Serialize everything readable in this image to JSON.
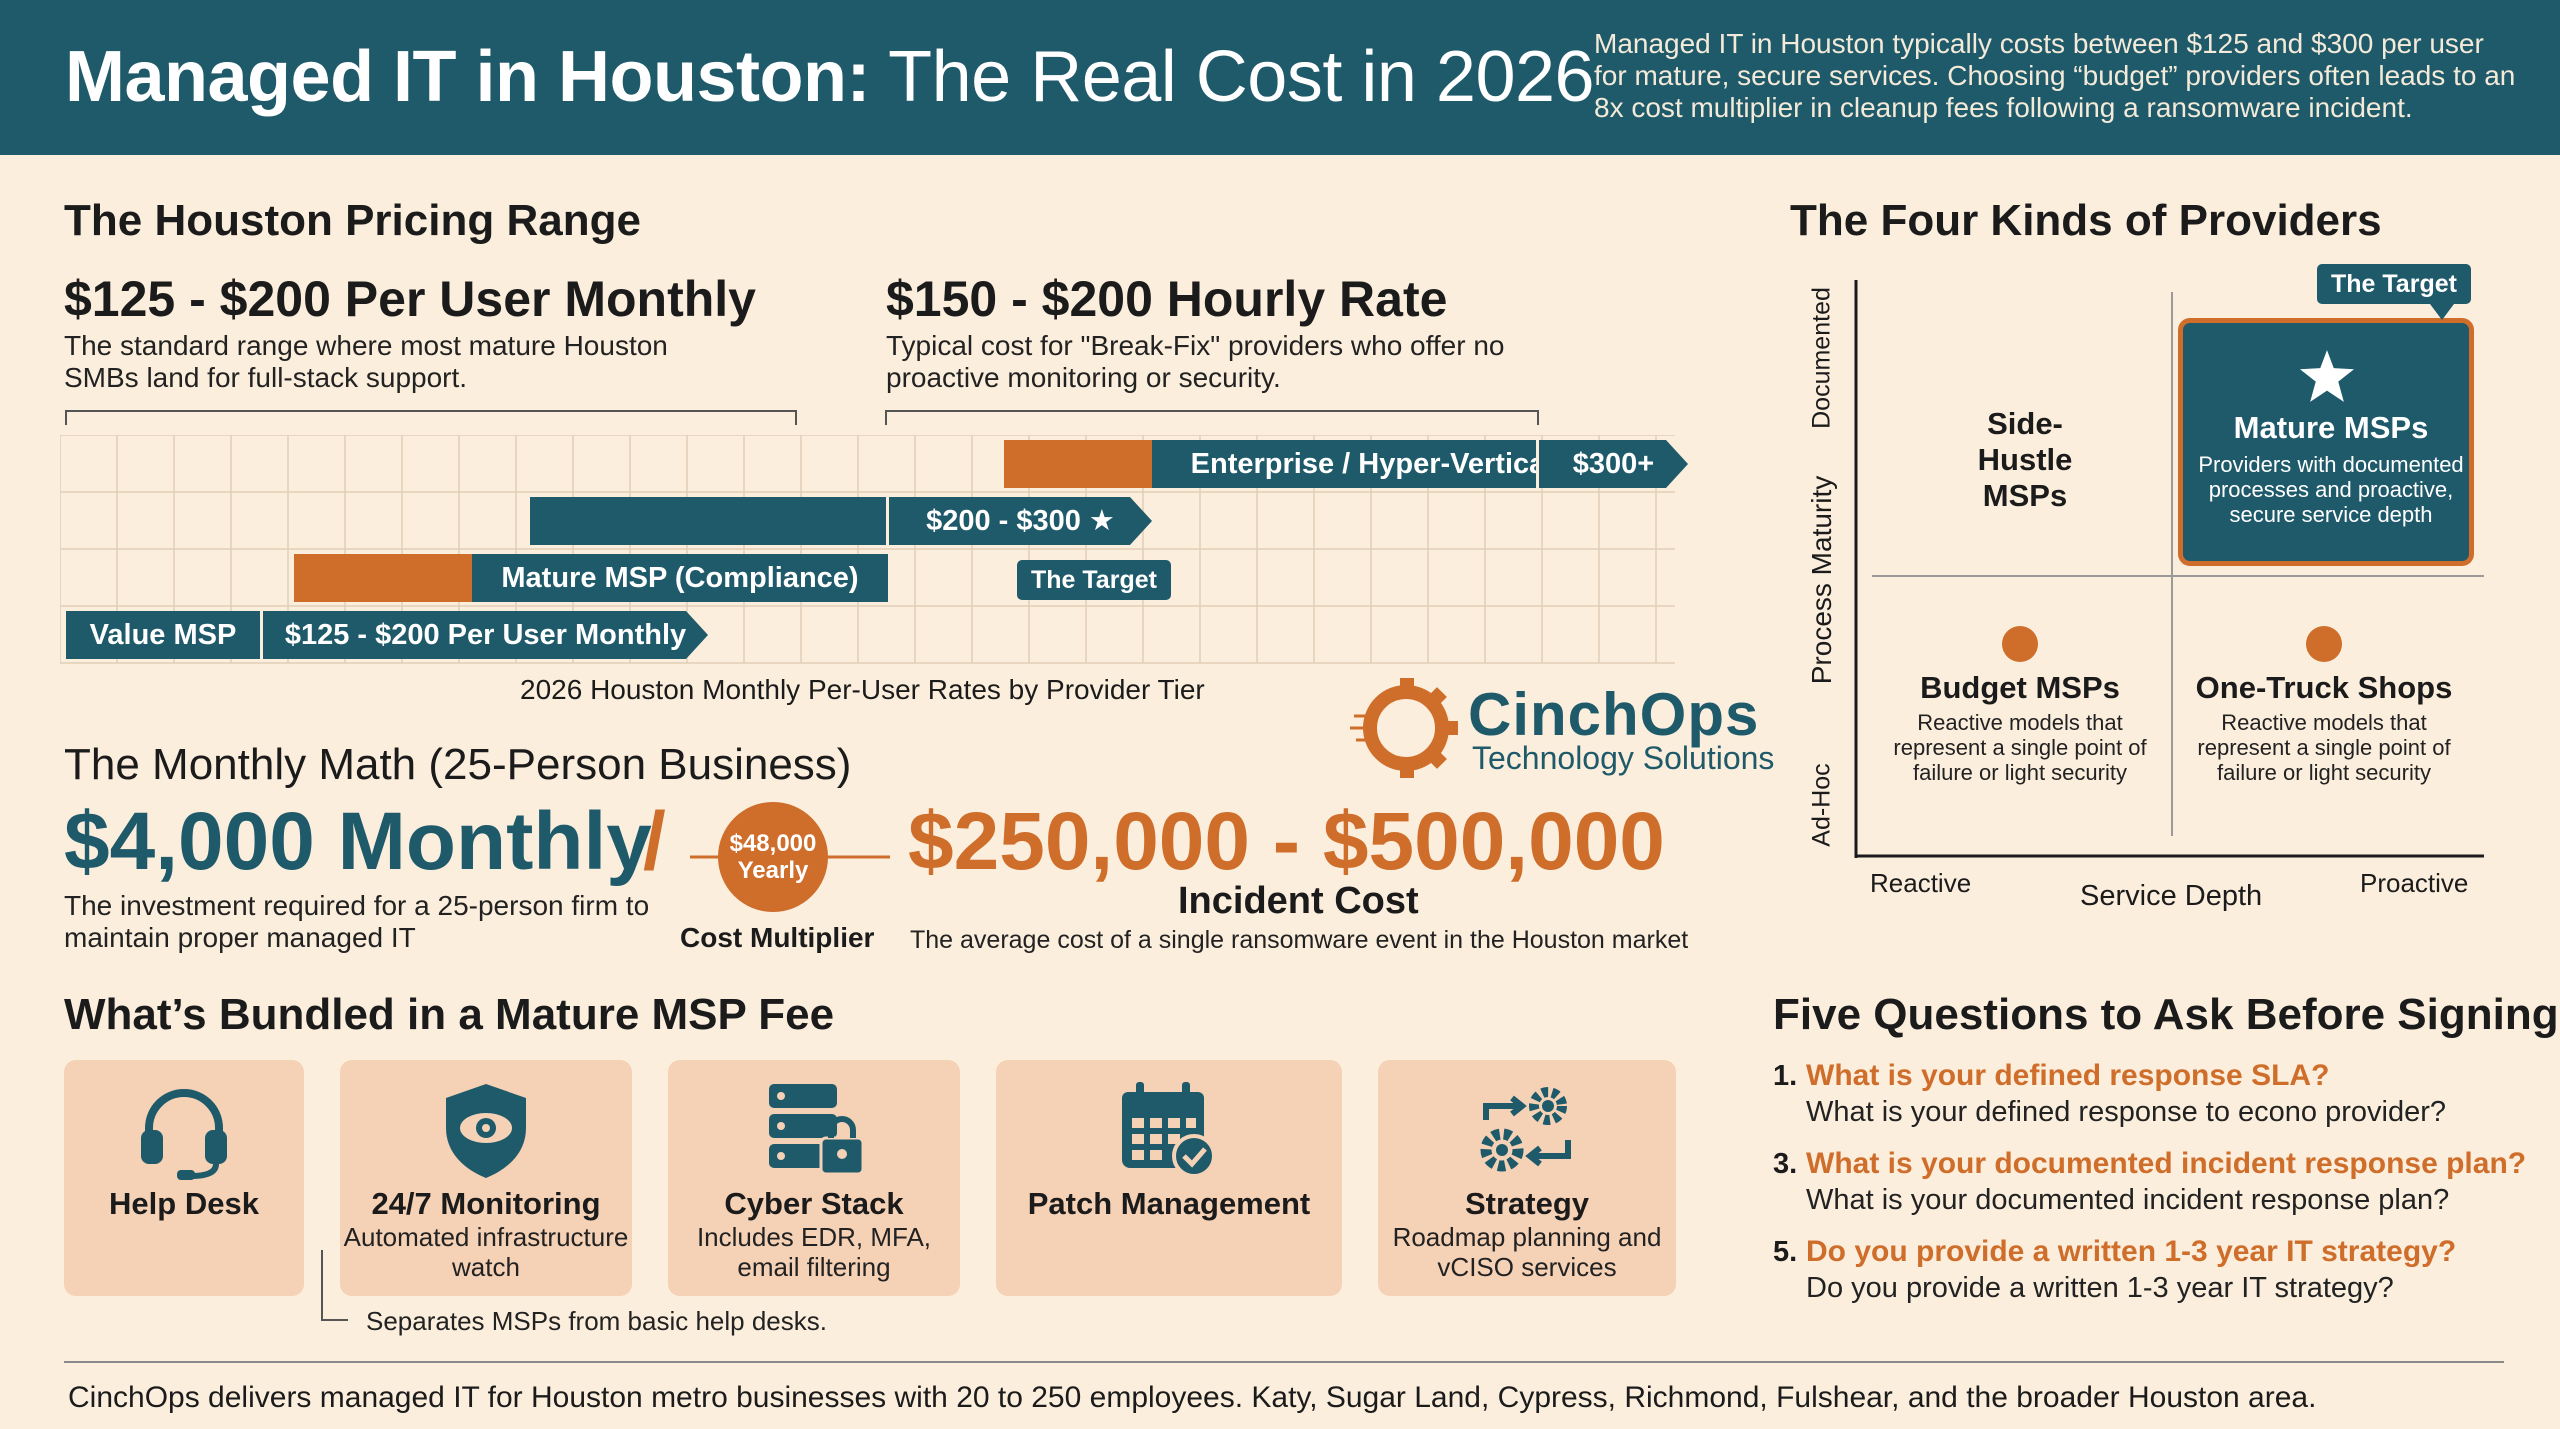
{
  "header": {
    "title_bold": "Managed IT in Houston:",
    "title_light": "The Real Cost in 2026",
    "summary": "Managed IT in Houston typically costs between $125 and $300 per user for mature, secure services. Choosing “budget” providers often leads to an 8x cost multiplier in cleanup fees following a ransomware incident."
  },
  "pricing": {
    "section_title": "The Houston Pricing Range",
    "left": {
      "price": "$125 - $200 Per User Monthly",
      "desc": "The standard range where most mature Houston SMBs land for full-stack support."
    },
    "right": {
      "price": "$150 - $200 Hourly Rate",
      "desc": "Typical cost for \"Break-Fix\" providers who offer no proactive monitoring or security."
    },
    "chart": {
      "caption": "2026 Houston Monthly Per-User Rates by Provider Tier",
      "tiers": [
        {
          "name": "Value MSP",
          "range": "$125 - $200 Per User Monthly"
        },
        {
          "name": "Mature MSP (Compliance)",
          "range": "$200 - $300 ★"
        },
        {
          "name": "Enterprise / Hyper-Vertical",
          "range": "$300+"
        }
      ],
      "target_tag": "The Target"
    }
  },
  "brand": {
    "name": "CinchOps",
    "tagline": "Technology Solutions"
  },
  "monthly_math": {
    "section_title": "The Monthly Math (25-Person Business)",
    "monthly_value": "$4,000 Monthly",
    "slash": "/",
    "monthly_desc": "The investment required for a 25-person firm to maintain proper managed IT",
    "yearly_line1": "$48,000",
    "yearly_line2": "Yearly",
    "multiplier_label": "Cost Multiplier",
    "incident_value": "$250,000 - $500,000",
    "incident_label": "Incident Cost",
    "incident_desc": "The average cost of a single ransomware event in the Houston market"
  },
  "bundle": {
    "section_title": "What’s Bundled in a Mature MSP Fee",
    "cards": [
      {
        "title": "Help Desk",
        "sub": "",
        "icon": "headset-icon"
      },
      {
        "title": "24/7 Monitoring",
        "sub": "Automated infrastructure watch",
        "icon": "shield-eye-icon"
      },
      {
        "title": "Cyber Stack",
        "sub": "Includes EDR, MFA, email filtering",
        "icon": "server-lock-icon"
      },
      {
        "title": "Patch Management",
        "sub": "",
        "icon": "calendar-check-icon"
      },
      {
        "title": "Strategy",
        "sub": "Roadmap planning and vCISO services",
        "icon": "gears-icon"
      }
    ],
    "note": "Separates MSPs from basic help desks."
  },
  "providers": {
    "section_title": "The Four Kinds of Providers",
    "y_axis": {
      "label": "Process Maturity",
      "top": "Documented",
      "bottom": "Ad-Hoc"
    },
    "x_axis": {
      "label": "Service Depth",
      "left": "Reactive",
      "right": "Proactive"
    },
    "target_tag": "The Target",
    "quadrants": [
      {
        "title": "Side-Hustle MSPs",
        "desc": ""
      },
      {
        "title": "Mature MSPs",
        "desc": "Providers with documented processes and proactive, secure service depth"
      },
      {
        "title": "Budget MSPs",
        "desc": "Reactive models that represent a single point of failure or light security"
      },
      {
        "title": "One-Truck Shops",
        "desc": "Reactive models that represent a single point of failure or light security"
      }
    ]
  },
  "questions": {
    "section_title": "Five Questions to Ask Before Signing",
    "items": [
      {
        "num": "1.",
        "head": "What is your defined response SLA?",
        "sub": "What is your defined response to econo provider?"
      },
      {
        "num": "3.",
        "head": "What is your documented incident response plan?",
        "sub": "What is your documented incident response plan?"
      },
      {
        "num": "5.",
        "head": "Do you provide a written 1-3 year IT strategy?",
        "sub": "Do you provide a written 1-3 year IT strategy?"
      }
    ]
  },
  "footer": {
    "text": "CinchOps delivers managed IT for Houston metro businesses with 20 to 250 employees. Katy, Sugar Land, Cypress, Richmond, Fulshear, and the broader Houston area."
  },
  "colors": {
    "teal": "#1f5a6a",
    "orange": "#cf6d2a",
    "background": "#fbeedd",
    "card": "#f5d1b6"
  }
}
